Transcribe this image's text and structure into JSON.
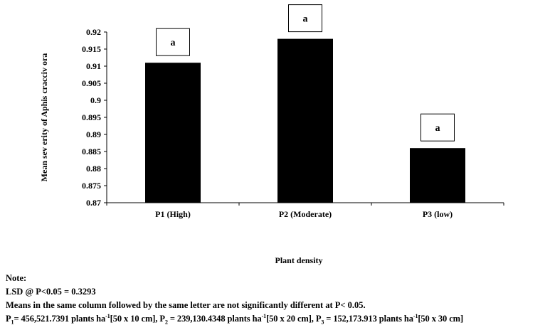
{
  "chart_data": {
    "type": "bar",
    "title": "",
    "categories": [
      "P1 (High)",
      "P2 (Moderate)",
      "P3 (low)"
    ],
    "values": [
      0.911,
      0.918,
      0.886
    ],
    "significance_letters": [
      "a",
      "a",
      "a"
    ],
    "xlabel": "Plant density",
    "ylabel": "Mean sev erity of Aphis cracciv ora",
    "ylim": [
      0.87,
      0.92
    ],
    "yticks": [
      "0.87",
      "0.875",
      "0.88",
      "0.885",
      "0.89",
      "0.895",
      "0.9",
      "0.905",
      "0.91",
      "0.915",
      "0.92"
    ],
    "grid": false,
    "bar_color": "#000000"
  },
  "notes": {
    "heading": "Note:",
    "lsd": "LSD @ P<0.05 = 0.3293",
    "means": "Means in the same column followed by the same letter are not significantly different at P< 0.05.",
    "densities": [
      {
        "label": "P",
        "sub": "1",
        "eq": "= 456,521.7391 plants ha",
        "sup": "-1",
        "spacing": "[50 x 10 cm], "
      },
      {
        "label": "P",
        "sub": "2",
        "eq": " = 239,130.4348 plants ha",
        "sup": "-1",
        "spacing": "[50 x 20 cm], "
      },
      {
        "label": "P",
        "sub": "3",
        "eq": " = 152,173.913 plants ha",
        "sup": "-1",
        "spacing": "[50 x 30 cm]"
      }
    ]
  }
}
